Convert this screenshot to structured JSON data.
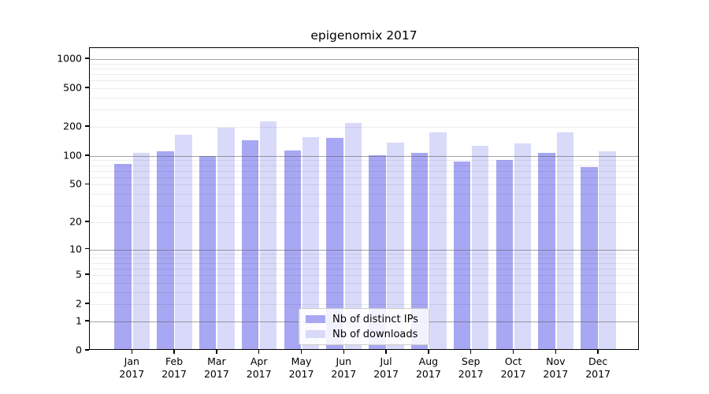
{
  "title": "epigenomix 2017",
  "chart_data": {
    "type": "bar",
    "title": "epigenomix 2017",
    "yscale": "log10(value+1)",
    "categories": [
      "Jan",
      "Feb",
      "Mar",
      "Apr",
      "May",
      "Jun",
      "Jul",
      "Aug",
      "Sep",
      "Oct",
      "Nov",
      "Dec"
    ],
    "year_label": "2017",
    "series": [
      {
        "name": "Nb of distinct IPs",
        "color": "#a7a7f4",
        "values": [
          79,
          108,
          96,
          140,
          109,
          148,
          97,
          103,
          84,
          88,
          103,
          74
        ]
      },
      {
        "name": "Nb of downloads",
        "color": "#d9d9fa",
        "values": [
          103,
          160,
          188,
          218,
          150,
          212,
          133,
          169,
          123,
          131,
          170,
          108
        ]
      }
    ],
    "y_ticks": [
      0,
      1,
      2,
      5,
      10,
      20,
      50,
      100,
      200,
      500,
      1000
    ],
    "grid_major": [
      1,
      10,
      100,
      1000
    ],
    "grid_minor": [
      2,
      3,
      4,
      5,
      6,
      7,
      8,
      9,
      20,
      30,
      40,
      50,
      60,
      70,
      80,
      90,
      200,
      300,
      400,
      500,
      600,
      700,
      800,
      900
    ],
    "ylim": [
      0,
      1268
    ],
    "grid": "both",
    "legend_position": "lower center"
  },
  "legend": {
    "entries": [
      {
        "label": "Nb of distinct IPs"
      },
      {
        "label": "Nb of downloads"
      }
    ]
  }
}
